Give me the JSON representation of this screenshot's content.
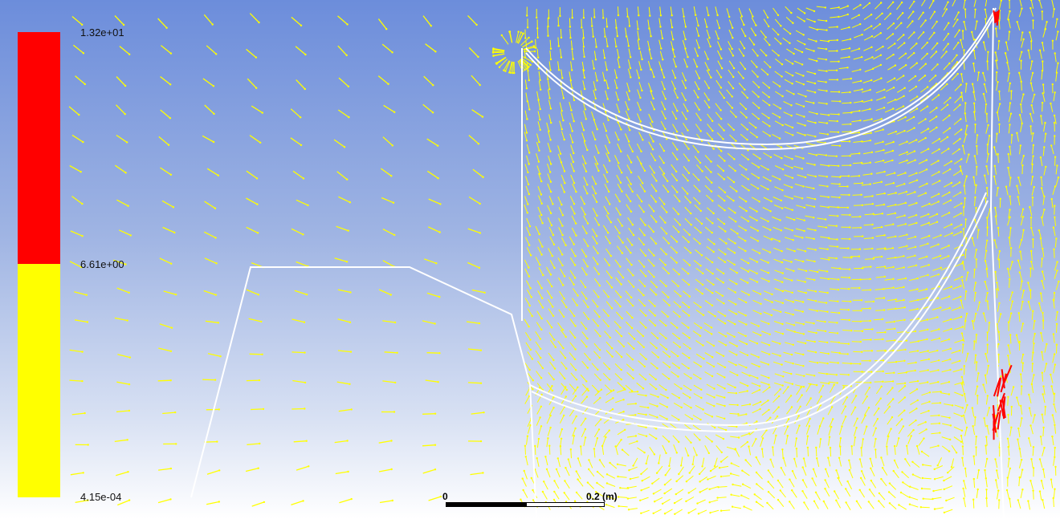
{
  "colorbar": {
    "labels": {
      "max": "1.32e+01",
      "mid": "6.61e+00",
      "min": "4.15e-04"
    },
    "colors": {
      "high": "#ff0000",
      "low": "#ffff00"
    }
  },
  "scale": {
    "start": "0",
    "end": "0.2 (m)"
  },
  "viewport": {
    "background_top": "#6c8ddb",
    "background_bottom": "#ffffff",
    "vector_color": "#ffff00",
    "high_vector_color": "#ff0000",
    "geometry_color": "#ffffff"
  }
}
